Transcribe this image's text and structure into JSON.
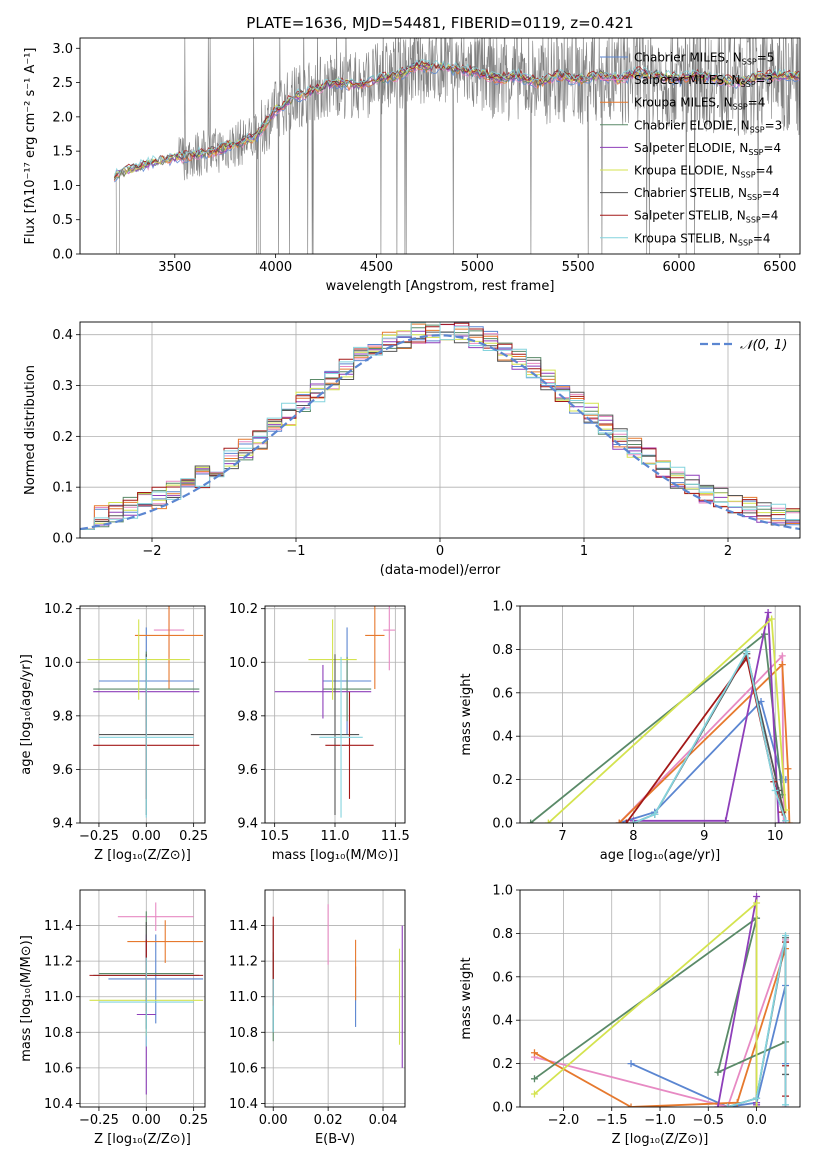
{
  "figure": {
    "title": "PLATE=1636, MJD=54481, FIBERID=0119, z=0.421"
  },
  "models": [
    {
      "name": "Chabrier MILES",
      "nssp": "5",
      "color": "#5b86d1"
    },
    {
      "name": "Salpeter MILES",
      "nssp": "3",
      "color": "#e78ac3"
    },
    {
      "name": "Kroupa MILES",
      "nssp": "4",
      "color": "#e6792e"
    },
    {
      "name": "Chabrier ELODIE",
      "nssp": "3",
      "color": "#5a8a68"
    },
    {
      "name": "Salpeter ELODIE",
      "nssp": "4",
      "color": "#8e3fba"
    },
    {
      "name": "Kroupa ELODIE",
      "nssp": "4",
      "color": "#d4e34f"
    },
    {
      "name": "Chabrier STELIB",
      "nssp": "4",
      "color": "#555555"
    },
    {
      "name": "Salpeter STELIB",
      "nssp": "4",
      "color": "#a31818"
    },
    {
      "name": "Kroupa STELIB",
      "nssp": "4",
      "color": "#84d3dd"
    }
  ],
  "legend_label_prefix": "N",
  "legend_label_sub": "SSP",
  "colors": {
    "data_spectrum": "#808080",
    "normal_curve": "#5b86d1",
    "grid": "#b0b0b0"
  },
  "chart_data": [
    {
      "id": "spectrum",
      "type": "line",
      "title": "PLATE=1636, MJD=54481, FIBERID=0119, z=0.421",
      "xlabel": "wavelength [Angstrom, rest frame]",
      "ylabel": "Flux [fλ10⁻¹⁷ erg cm⁻² s⁻¹ A⁻¹]",
      "xlim": [
        3030,
        6600
      ],
      "ylim": [
        0,
        3.15
      ],
      "xticks": [
        3500,
        4000,
        4500,
        5000,
        5500,
        6000,
        6500
      ],
      "yticks": [
        0.0,
        0.5,
        1.0,
        1.5,
        2.0,
        2.5,
        3.0
      ],
      "grid": false,
      "legend_position": "top-right",
      "continuum": {
        "x": [
          3200,
          3300,
          3400,
          3500,
          3600,
          3700,
          3800,
          3900,
          3950,
          4000,
          4100,
          4200,
          4300,
          4400,
          4500,
          4600,
          4700,
          4800,
          4900,
          5000,
          5100,
          5200,
          5300,
          5400,
          5500,
          5600,
          5700,
          5800,
          5900,
          6000,
          6100,
          6200,
          6300,
          6400,
          6500
        ],
        "y": [
          1.15,
          1.25,
          1.35,
          1.4,
          1.45,
          1.5,
          1.6,
          1.7,
          1.9,
          2.1,
          2.3,
          2.4,
          2.5,
          2.45,
          2.55,
          2.6,
          2.75,
          2.72,
          2.7,
          2.65,
          2.55,
          2.6,
          2.5,
          2.6,
          2.55,
          2.6,
          2.55,
          2.65,
          2.6,
          2.55,
          2.6,
          2.55,
          2.5,
          2.6,
          2.6
        ]
      }
    },
    {
      "id": "residuals",
      "type": "histogram",
      "xlabel": "(data-model)/error",
      "ylabel": "Normed distribution",
      "xlim": [
        -2.5,
        2.5
      ],
      "ylim": [
        0,
        0.425
      ],
      "xticks": [
        -2,
        -1,
        0,
        1,
        2
      ],
      "yticks": [
        0.0,
        0.1,
        0.2,
        0.3,
        0.4
      ],
      "grid": true,
      "bin_width": 0.1,
      "normal_curve_label": "𝒩(0, 1)",
      "legend_position": "top-right"
    },
    {
      "id": "age-vs-Z",
      "type": "errorbar",
      "xlabel": "Z [log₁₀(Z/Z⊙)]",
      "ylabel": "age  [log₁₀(age/yr)]",
      "xlim": [
        -0.35,
        0.31
      ],
      "ylim": [
        9.4,
        10.21
      ],
      "xticks": [
        -0.25,
        0.0,
        0.25
      ],
      "yticks": [
        9.4,
        9.6,
        9.8,
        10.0,
        10.2
      ],
      "grid": true,
      "points": [
        {
          "x": 0.0,
          "y": 9.93,
          "xerr": 0.25,
          "yerr": 0.2
        },
        {
          "x": 0.12,
          "y": 10.12,
          "xerr": 0.08,
          "yerr": 0.1
        },
        {
          "x": 0.12,
          "y": 10.1,
          "xerr": 0.18,
          "yerr": 0.2
        },
        {
          "x": 0.0,
          "y": 9.9,
          "xerr": 0.28,
          "yerr": 0.14
        },
        {
          "x": 0.0,
          "y": 9.89,
          "xerr": 0.28,
          "yerr": 0.08
        },
        {
          "x": -0.04,
          "y": 10.01,
          "xerr": 0.27,
          "yerr": 0.15
        },
        {
          "x": 0.0,
          "y": 9.73,
          "xerr": 0.25,
          "yerr": 0.3
        },
        {
          "x": 0.0,
          "y": 9.69,
          "xerr": 0.28,
          "yerr": 0.2
        },
        {
          "x": 0.0,
          "y": 9.72,
          "xerr": 0.25,
          "yerr": 0.3
        }
      ]
    },
    {
      "id": "age-vs-mass",
      "type": "errorbar",
      "xlabel": "mass [log₁₀(M/M⊙)]",
      "xlim": [
        10.42,
        11.58
      ],
      "ylim": [
        9.4,
        10.21
      ],
      "xticks": [
        10.5,
        11.0,
        11.5
      ],
      "yticks": [
        9.4,
        9.6,
        9.8,
        10.0,
        10.2
      ],
      "grid": true,
      "points": [
        {
          "x": 11.1,
          "y": 9.93,
          "xerr": 0.2,
          "yerr": 0.2
        },
        {
          "x": 11.45,
          "y": 10.12,
          "xerr": 0.05,
          "yerr": 0.15
        },
        {
          "x": 11.33,
          "y": 10.1,
          "xerr": 0.08,
          "yerr": 0.2
        },
        {
          "x": 11.1,
          "y": 9.9,
          "xerr": 0.2,
          "yerr": 0.12
        },
        {
          "x": 10.9,
          "y": 9.89,
          "xerr": 0.4,
          "yerr": 0.1
        },
        {
          "x": 10.98,
          "y": 10.01,
          "xerr": 0.2,
          "yerr": 0.15
        },
        {
          "x": 11.0,
          "y": 9.73,
          "xerr": 0.2,
          "yerr": 0.3
        },
        {
          "x": 11.12,
          "y": 9.69,
          "xerr": 0.2,
          "yerr": 0.2
        },
        {
          "x": 11.05,
          "y": 9.72,
          "xerr": 0.18,
          "yerr": 0.3
        }
      ]
    },
    {
      "id": "weight-vs-age",
      "type": "line",
      "xlabel": "age  [log₁₀(age/yr)]",
      "ylabel": "mass weight",
      "xlim": [
        6.4,
        10.35
      ],
      "ylim": [
        0,
        1.0
      ],
      "xticks": [
        7,
        8,
        9,
        10
      ],
      "yticks": [
        0.0,
        0.2,
        0.4,
        0.6,
        0.8,
        1.0
      ],
      "grid": true,
      "series": [
        {
          "x": [
            7.8,
            8.3,
            9.8,
            10.1,
            10.15
          ],
          "y": [
            0.0,
            0.05,
            0.56,
            0.2,
            0.2
          ]
        },
        {
          "x": [
            7.8,
            10.1,
            10.12
          ],
          "y": [
            0.0,
            0.77,
            0.0
          ]
        },
        {
          "x": [
            7.8,
            10.1,
            10.18,
            10.2
          ],
          "y": [
            0.0,
            0.73,
            0.25,
            0.0
          ]
        },
        {
          "x": [
            6.55,
            9.85,
            10.1
          ],
          "y": [
            0.0,
            0.87,
            0.13
          ]
        },
        {
          "x": [
            8.0,
            9.3,
            9.9,
            10.05
          ],
          "y": [
            0.01,
            0.01,
            0.97,
            0.0
          ]
        },
        {
          "x": [
            6.8,
            9.95,
            10.15
          ],
          "y": [
            0.0,
            0.94,
            0.06
          ]
        },
        {
          "x": [
            8.0,
            8.3,
            9.6,
            10.05,
            10.15
          ],
          "y": [
            0.0,
            0.04,
            0.78,
            0.15,
            0.01
          ]
        },
        {
          "x": [
            7.9,
            9.6,
            9.98,
            10.1
          ],
          "y": [
            0.0,
            0.76,
            0.19,
            0.05
          ]
        },
        {
          "x": [
            8.0,
            8.3,
            9.6,
            10.0,
            10.15
          ],
          "y": [
            0.0,
            0.04,
            0.79,
            0.15,
            0.01
          ]
        }
      ]
    },
    {
      "id": "mass-vs-Z",
      "type": "errorbar",
      "xlabel": "Z [log₁₀(Z/Z⊙)]",
      "ylabel": "mass [log₁₀(M/M⊙)]",
      "xlim": [
        -0.35,
        0.31
      ],
      "ylim": [
        10.38,
        11.6
      ],
      "xticks": [
        -0.25,
        0.0,
        0.25
      ],
      "yticks": [
        10.4,
        10.6,
        10.8,
        11.0,
        11.2,
        11.4
      ],
      "grid": true,
      "points": [
        {
          "x": 0.05,
          "y": 11.1,
          "xerr": 0.25,
          "yerr": 0.25
        },
        {
          "x": 0.05,
          "y": 11.45,
          "xerr": 0.2,
          "yerr": 0.08
        },
        {
          "x": 0.1,
          "y": 11.31,
          "xerr": 0.2,
          "yerr": 0.12
        },
        {
          "x": 0.0,
          "y": 11.13,
          "xerr": 0.25,
          "yerr": 0.35
        },
        {
          "x": 0.0,
          "y": 10.9,
          "xerr": 0.05,
          "yerr": 0.45
        },
        {
          "x": 0.0,
          "y": 10.98,
          "xerr": 0.3,
          "yerr": 0.2
        },
        {
          "x": 0.0,
          "y": 11.12,
          "xerr": 0.28,
          "yerr": 0.3
        },
        {
          "x": 0.0,
          "y": 11.12,
          "xerr": 0.3,
          "yerr": 0.2
        },
        {
          "x": 0.0,
          "y": 10.97,
          "xerr": 0.25,
          "yerr": 0.25
        }
      ]
    },
    {
      "id": "mass-vs-EBV",
      "type": "errorbar",
      "xlabel": "E(B-V)",
      "xlim": [
        -0.003,
        0.048
      ],
      "ylim": [
        10.38,
        11.6
      ],
      "xticks": [
        0.0,
        0.02,
        0.04
      ],
      "yticks": [
        10.4,
        10.6,
        10.8,
        11.0,
        11.2,
        11.4
      ],
      "grid": true,
      "points": [
        {
          "x": 0.03,
          "y": 11.0,
          "xerr": 0.0,
          "yerr": 0.17
        },
        {
          "x": 0.02,
          "y": 11.35,
          "xerr": 0.0,
          "yerr": 0.17
        },
        {
          "x": 0.03,
          "y": 11.15,
          "xerr": 0.0,
          "yerr": 0.17
        },
        {
          "x": 0.0,
          "y": 11.0,
          "xerr": 0.0,
          "yerr": 0.25
        },
        {
          "x": 0.047,
          "y": 11.0,
          "xerr": 0.0,
          "yerr": 0.4
        },
        {
          "x": 0.046,
          "y": 11.0,
          "xerr": 0.0,
          "yerr": 0.27
        },
        {
          "x": 0.0,
          "y": 11.1,
          "xerr": 0.0,
          "yerr": 0.3
        },
        {
          "x": 0.0,
          "y": 11.2,
          "xerr": 0.0,
          "yerr": 0.25
        },
        {
          "x": 0.0,
          "y": 10.95,
          "xerr": 0.0,
          "yerr": 0.15
        }
      ]
    },
    {
      "id": "weight-vs-Z",
      "type": "line",
      "xlabel": "Z [log₁₀(Z/Z⊙)]",
      "ylabel": "mass weight",
      "xlim": [
        -2.45,
        0.45
      ],
      "ylim": [
        0,
        1.0
      ],
      "xticks": [
        -2.0,
        -1.5,
        -1.0,
        -0.5,
        0.0
      ],
      "yticks": [
        0.0,
        0.2,
        0.4,
        0.6,
        0.8,
        1.0
      ],
      "grid": true,
      "series": [
        {
          "x": [
            -1.3,
            -0.3,
            0.0,
            0.3,
            0.3
          ],
          "y": [
            0.2,
            0.0,
            0.02,
            0.56,
            0.2
          ]
        },
        {
          "x": [
            -2.3,
            -0.3,
            0.3,
            0.3
          ],
          "y": [
            0.23,
            0.0,
            0.77,
            0.0
          ]
        },
        {
          "x": [
            -2.3,
            -1.3,
            -0.2,
            0.3
          ],
          "y": [
            0.25,
            0.0,
            0.02,
            0.73
          ]
        },
        {
          "x": [
            -2.3,
            0.0,
            -0.4,
            0.3
          ],
          "y": [
            0.13,
            0.87,
            0.16,
            0.3
          ]
        },
        {
          "x": [
            -0.4,
            0.0,
            0.0,
            0.0
          ],
          "y": [
            0.0,
            0.97,
            0.02,
            0.01
          ]
        },
        {
          "x": [
            -2.3,
            0.0,
            0.0
          ],
          "y": [
            0.06,
            0.94,
            0.0
          ]
        },
        {
          "x": [
            -0.3,
            0.0,
            0.3,
            0.3
          ],
          "y": [
            0.0,
            0.04,
            0.78,
            0.15
          ]
        },
        {
          "x": [
            0.3,
            0.3,
            0.3
          ],
          "y": [
            0.76,
            0.19,
            0.05
          ]
        },
        {
          "x": [
            -0.3,
            0.0,
            0.3,
            0.3
          ],
          "y": [
            0.0,
            0.04,
            0.79,
            0.01
          ]
        }
      ]
    }
  ]
}
